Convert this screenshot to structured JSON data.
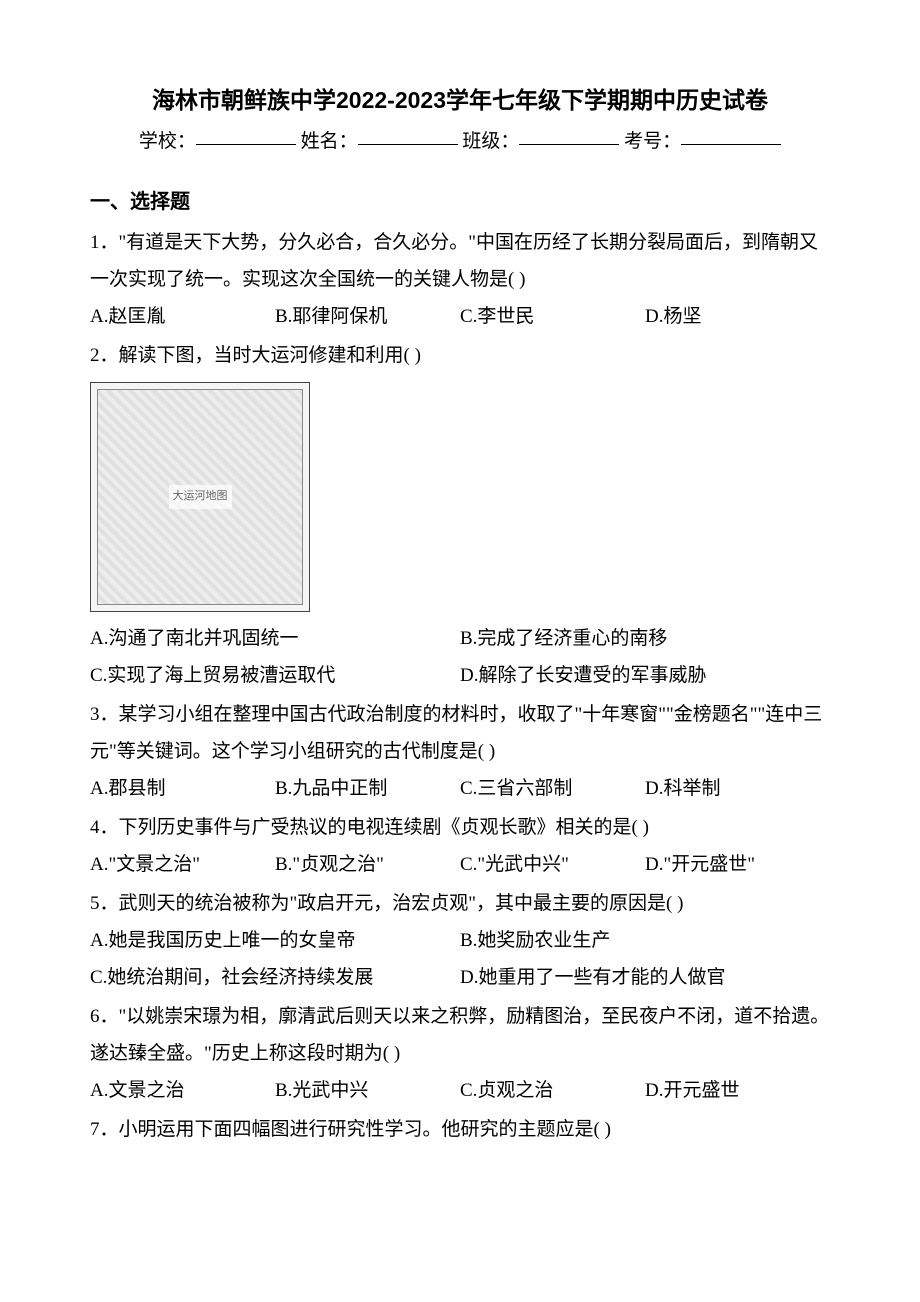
{
  "title": "海林市朝鲜族中学2022-2023学年七年级下学期期中历史试卷",
  "header": {
    "school_label": "学校：",
    "name_label": "姓名：",
    "class_label": "班级：",
    "exam_no_label": "考号："
  },
  "section1_heading": "一、选择题",
  "questions": [
    {
      "num": "1．",
      "text": "\"有道是天下大势，分久必合，合久必分。\"中国在历经了长期分裂局面后，到隋朝又一次实现了统一。实现这次全国统一的关键人物是(   )",
      "options": [
        "A.赵匡胤",
        "B.耶律阿保机",
        "C.李世民",
        "D.杨坚"
      ],
      "layout": "opt-4",
      "has_image": false
    },
    {
      "num": "2．",
      "text": "解读下图，当时大运河修建和利用(   )",
      "options": [
        "A.沟通了南北并巩固统一",
        "B.完成了经济重心的南移",
        "C.实现了海上贸易被漕运取代",
        "D.解除了长安遭受的军事威胁"
      ],
      "layout": "opt-2",
      "has_image": true,
      "image_caption": "大运河地图"
    },
    {
      "num": "3．",
      "text": "某学习小组在整理中国古代政治制度的材料时，收取了\"十年寒窗\"\"金榜题名\"\"连中三元\"等关键词。这个学习小组研究的古代制度是(   )",
      "options": [
        "A.郡县制",
        "B.九品中正制",
        "C.三省六部制",
        "D.科举制"
      ],
      "layout": "opt-4",
      "has_image": false
    },
    {
      "num": "4．",
      "text": "下列历史事件与广受热议的电视连续剧《贞观长歌》相关的是(   )",
      "options": [
        "A.\"文景之治\"",
        "B.\"贞观之治\"",
        "C.\"光武中兴\"",
        "D.\"开元盛世\""
      ],
      "layout": "opt-4",
      "has_image": false
    },
    {
      "num": "5．",
      "text": "武则天的统治被称为\"政启开元，治宏贞观\"，其中最主要的原因是(   )",
      "options": [
        "A.她是我国历史上唯一的女皇帝",
        "B.她奖励农业生产",
        "C.她统治期间，社会经济持续发展",
        "D.她重用了一些有才能的人做官"
      ],
      "layout": "opt-2",
      "has_image": false
    },
    {
      "num": "6．",
      "text": "\"以姚崇宋璟为相，廓清武后则天以来之积弊，励精图治，至民夜户不闭，道不拾遗。遂达臻全盛。\"历史上称这段时期为(   )",
      "options": [
        "A.文景之治",
        "B.光武中兴",
        "C.贞观之治",
        "D.开元盛世"
      ],
      "layout": "opt-4",
      "has_image": false
    },
    {
      "num": "7．",
      "text": "小明运用下面四幅图进行研究性学习。他研究的主题应是(   )",
      "options": [],
      "layout": "",
      "has_image": false
    }
  ],
  "colors": {
    "text": "#000000",
    "background": "#ffffff"
  },
  "typography": {
    "title_fontsize": 23,
    "body_fontsize": 19,
    "title_family": "SimHei",
    "body_family": "SimSun"
  }
}
